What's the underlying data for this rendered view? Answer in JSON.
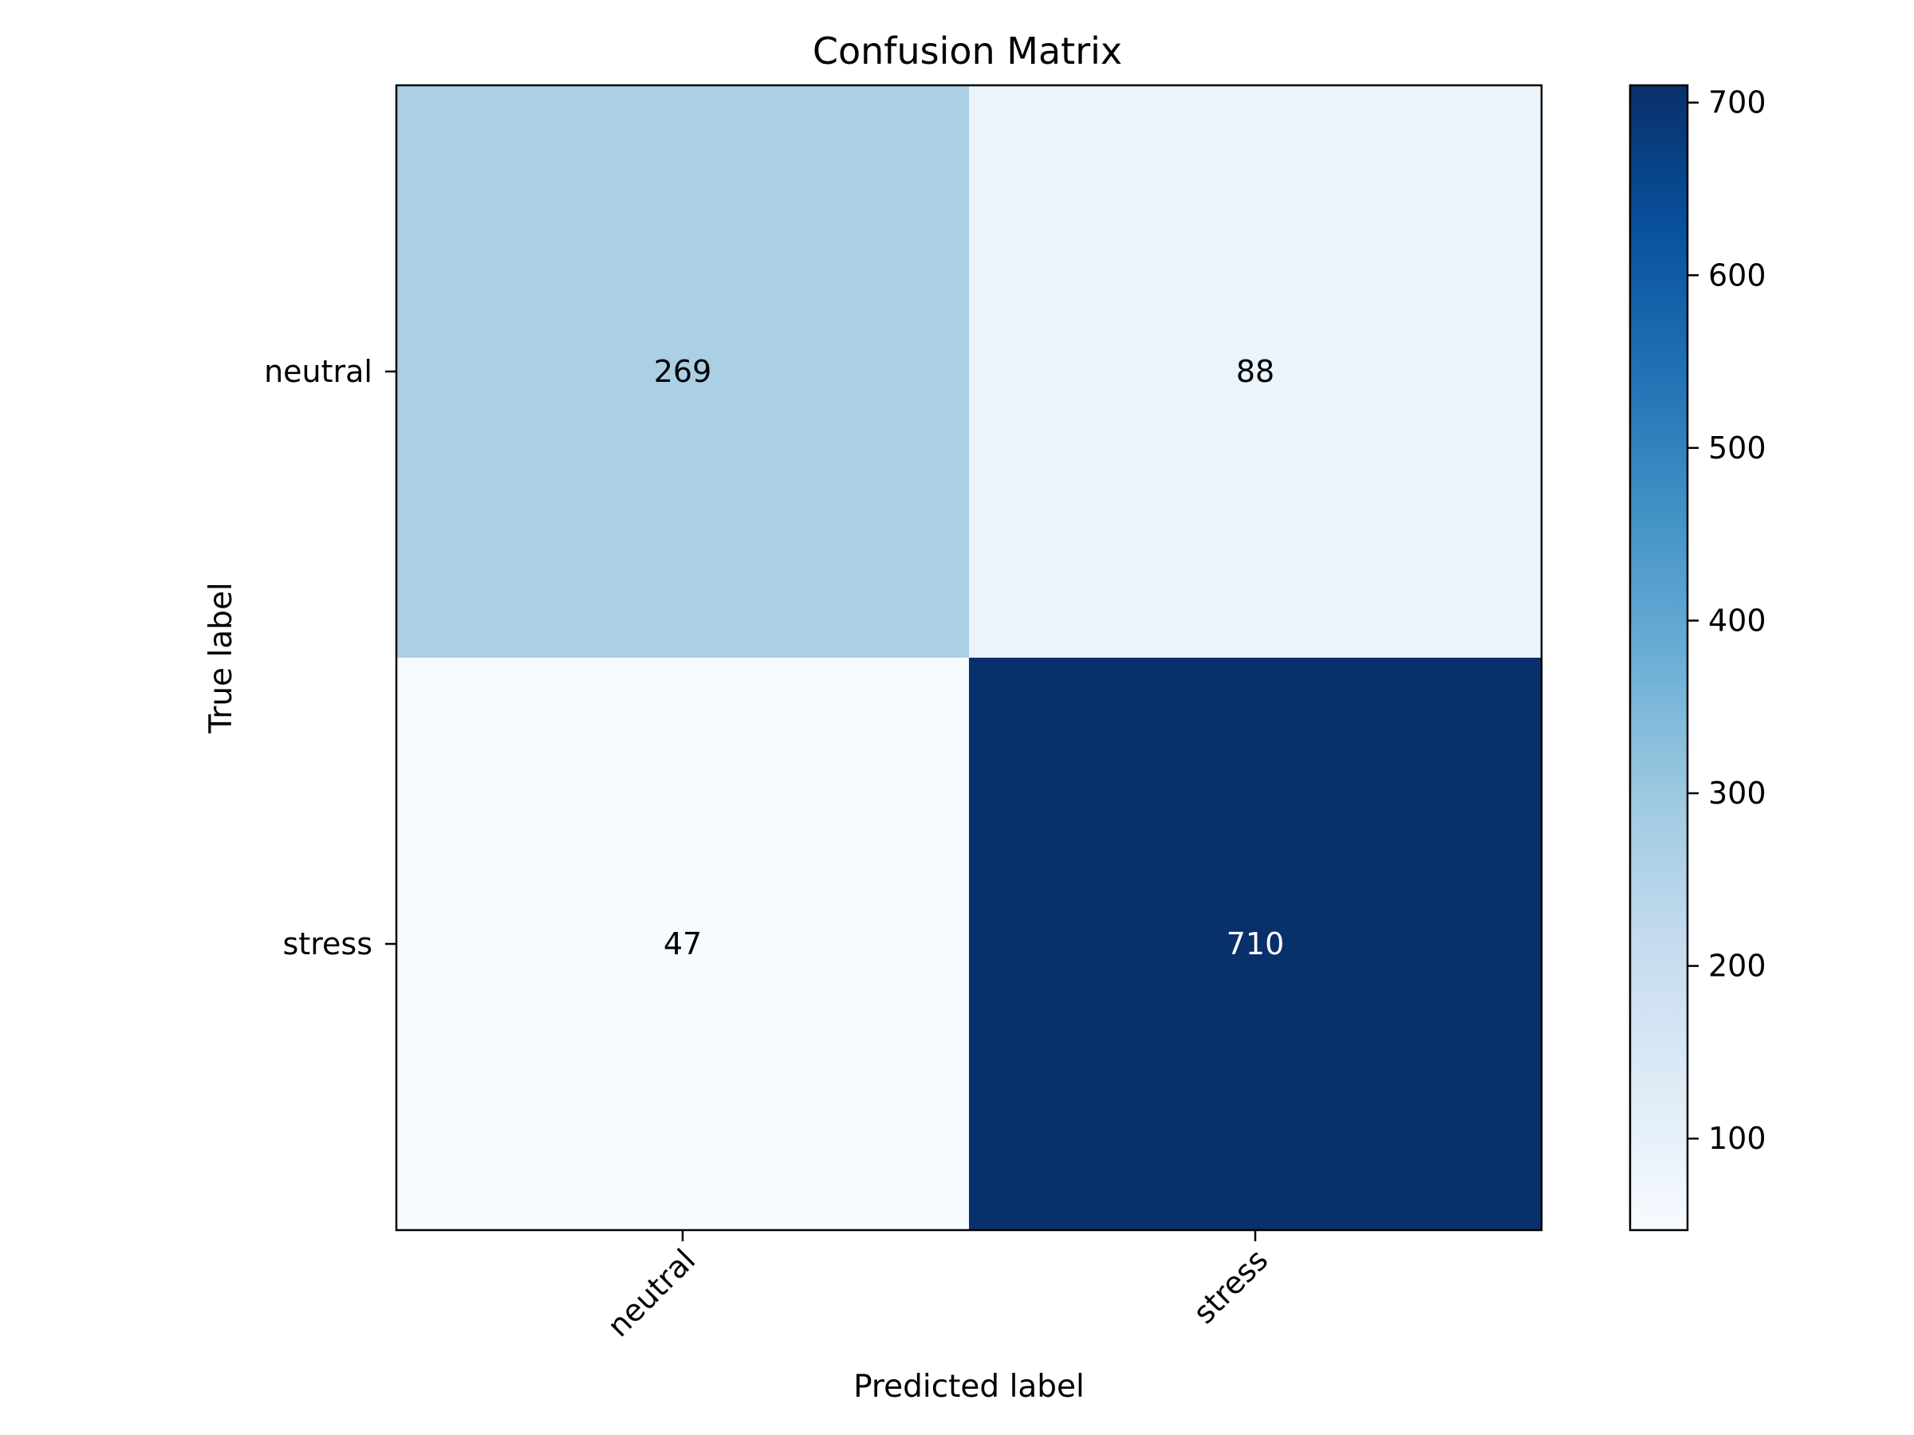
{
  "chart_data": {
    "type": "heatmap",
    "title": "Confusion Matrix",
    "xlabel": "Predicted label",
    "ylabel": "True label",
    "x_categories": [
      "neutral",
      "stress"
    ],
    "y_categories": [
      "neutral",
      "stress"
    ],
    "values": [
      [
        269,
        88
      ],
      [
        47,
        710
      ]
    ],
    "colormap": "Blues",
    "colorbar": {
      "min": 47,
      "max": 710,
      "ticks": [
        100,
        200,
        300,
        400,
        500,
        600,
        700
      ]
    },
    "grid": false,
    "colors": {
      "low": "#f7fbff",
      "high": "#08306b",
      "text_dark": "#000000",
      "text_light": "#ffffff"
    }
  }
}
